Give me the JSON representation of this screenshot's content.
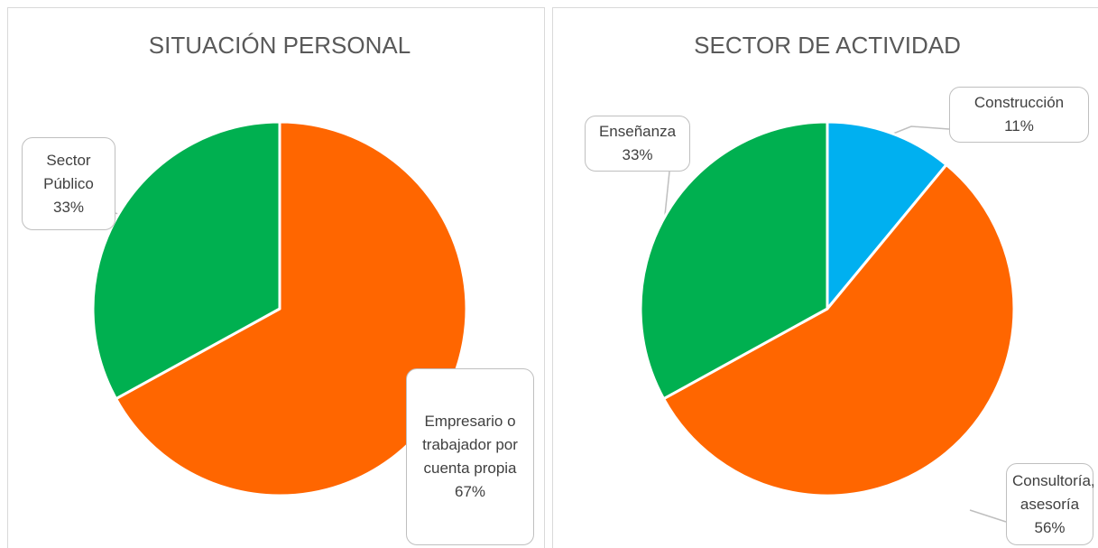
{
  "chart_data": [
    {
      "type": "pie",
      "title": "SITUACIÓN PERSONAL",
      "categories": [
        "Empresario o trabajador por cuenta propia",
        "Sector Público"
      ],
      "values": [
        67,
        33
      ],
      "value_labels": [
        "67%",
        "33%"
      ],
      "colors": [
        "#ff6600",
        "#00b050"
      ]
    },
    {
      "type": "pie",
      "title": "SECTOR DE ACTIVIDAD",
      "categories": [
        "Construcción",
        "Consultoría, asesoría",
        "Enseñanza"
      ],
      "values": [
        11,
        56,
        33
      ],
      "value_labels": [
        "11%",
        "56%",
        "33%"
      ],
      "colors": [
        "#00b0f0",
        "#ff6600",
        "#00b050"
      ]
    }
  ]
}
